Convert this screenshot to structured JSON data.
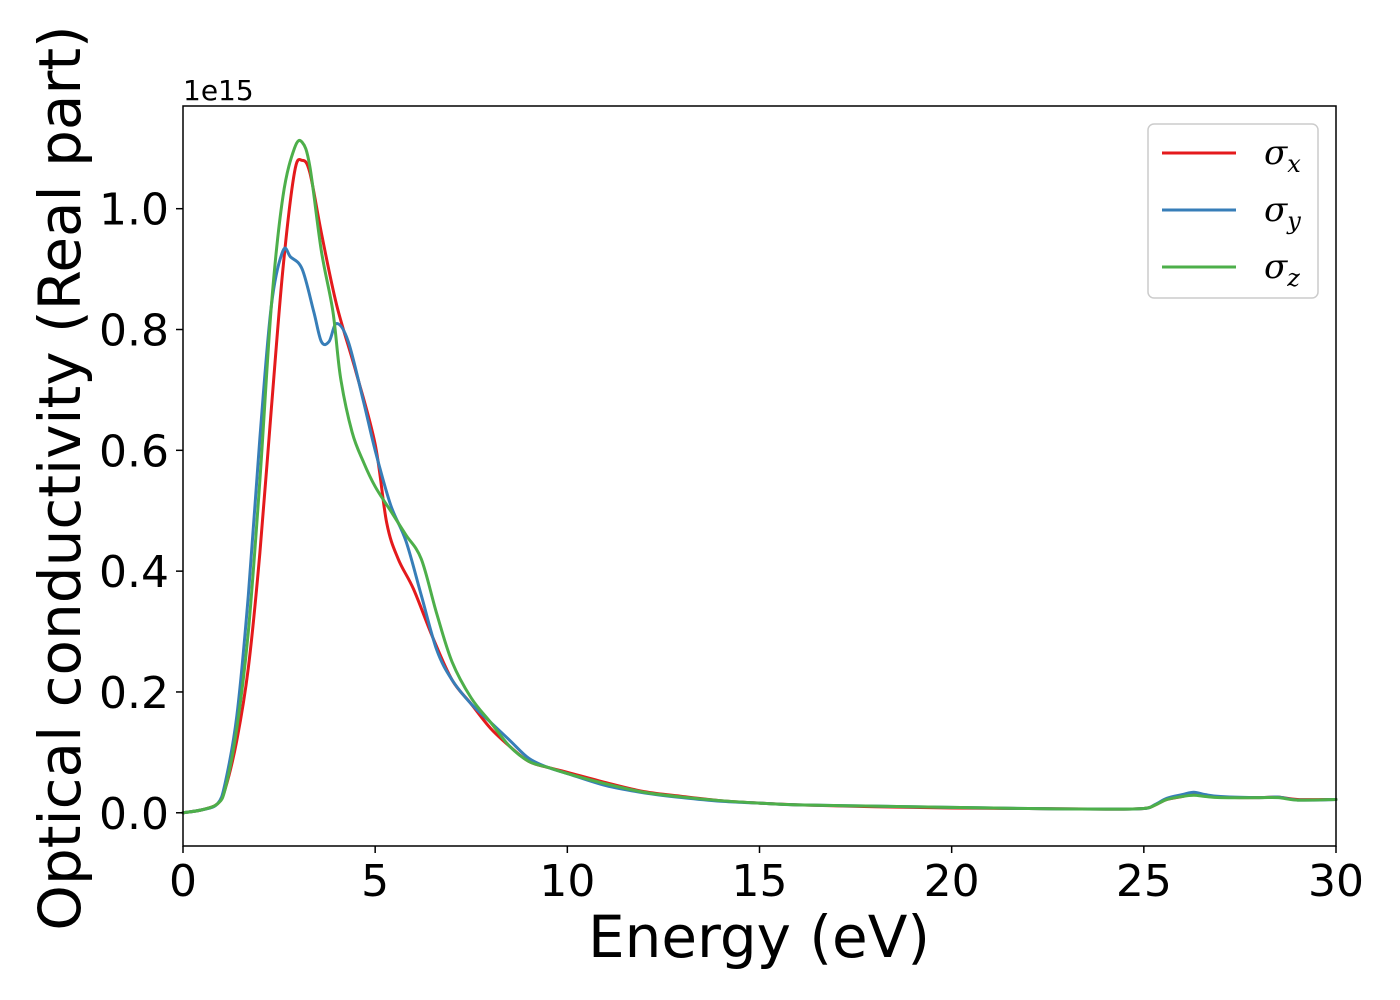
{
  "chart_data": {
    "type": "line",
    "title": "",
    "xlabel": "Energy (eV)",
    "ylabel": "Optical conductivity (Real part)",
    "y_offset_label": "1e15",
    "xlim": [
      0,
      30
    ],
    "ylim": [
      -0.055,
      1.17
    ],
    "xticks": [
      0,
      5,
      10,
      15,
      20,
      25,
      30
    ],
    "xtick_labels": [
      "0",
      "5",
      "10",
      "15",
      "20",
      "25",
      "30"
    ],
    "yticks": [
      0.0,
      0.2,
      0.4,
      0.6,
      0.8,
      1.0
    ],
    "ytick_labels": [
      "0.0",
      "0.2",
      "0.4",
      "0.6",
      "0.8",
      "1.0"
    ],
    "grid": false,
    "legend_position": "top-right",
    "series": [
      {
        "name": "σx",
        "symbol": "σ",
        "subscript": "x",
        "color": "#e41a1c",
        "x": [
          0,
          0.5,
          0.9,
          1.1,
          1.4,
          1.7,
          2.0,
          2.3,
          2.6,
          2.9,
          3.1,
          3.3,
          3.6,
          4.0,
          4.5,
          5.0,
          5.3,
          5.6,
          6.0,
          6.5,
          7.0,
          7.5,
          8.0,
          8.5,
          9.0,
          9.5,
          10.0,
          11.0,
          12.0,
          13.0,
          14.0,
          15.0,
          16.0,
          18.0,
          20.0,
          22.0,
          24.0,
          25.0,
          25.3,
          25.6,
          26.0,
          26.3,
          26.6,
          27.0,
          28.0,
          28.5,
          29.0,
          30.0
        ],
        "values": [
          0.0,
          0.005,
          0.015,
          0.04,
          0.12,
          0.24,
          0.43,
          0.67,
          0.9,
          1.06,
          1.08,
          1.06,
          0.96,
          0.84,
          0.73,
          0.61,
          0.48,
          0.42,
          0.37,
          0.29,
          0.22,
          0.18,
          0.14,
          0.11,
          0.085,
          0.075,
          0.067,
          0.05,
          0.035,
          0.027,
          0.02,
          0.016,
          0.013,
          0.01,
          0.008,
          0.007,
          0.006,
          0.007,
          0.013,
          0.022,
          0.027,
          0.031,
          0.028,
          0.026,
          0.025,
          0.026,
          0.022,
          0.022
        ]
      },
      {
        "name": "σy",
        "symbol": "σ",
        "subscript": "y",
        "color": "#377eb8",
        "x": [
          0,
          0.5,
          0.9,
          1.1,
          1.4,
          1.7,
          2.0,
          2.3,
          2.6,
          2.8,
          3.1,
          3.4,
          3.6,
          3.8,
          4.0,
          4.3,
          4.7,
          5.0,
          5.4,
          5.8,
          6.2,
          6.6,
          7.0,
          7.5,
          8.0,
          8.5,
          9.0,
          9.5,
          10.0,
          11.0,
          12.0,
          13.0,
          14.0,
          15.0,
          16.0,
          18.0,
          20.0,
          22.0,
          24.0,
          25.0,
          25.3,
          25.6,
          26.0,
          26.3,
          26.6,
          27.0,
          28.0,
          28.5,
          29.0,
          30.0
        ],
        "values": [
          0.0,
          0.005,
          0.015,
          0.05,
          0.16,
          0.36,
          0.62,
          0.84,
          0.93,
          0.92,
          0.9,
          0.83,
          0.78,
          0.78,
          0.81,
          0.78,
          0.68,
          0.6,
          0.51,
          0.45,
          0.36,
          0.27,
          0.22,
          0.18,
          0.15,
          0.12,
          0.09,
          0.075,
          0.065,
          0.045,
          0.033,
          0.025,
          0.019,
          0.016,
          0.013,
          0.011,
          0.009,
          0.007,
          0.006,
          0.007,
          0.014,
          0.024,
          0.03,
          0.034,
          0.03,
          0.027,
          0.025,
          0.026,
          0.021,
          0.022
        ]
      },
      {
        "name": "σz",
        "symbol": "σ",
        "subscript": "z",
        "color": "#4daf4a",
        "x": [
          0,
          0.5,
          0.9,
          1.1,
          1.4,
          1.7,
          2.0,
          2.3,
          2.6,
          2.9,
          3.1,
          3.3,
          3.6,
          3.9,
          4.1,
          4.4,
          4.7,
          5.0,
          5.4,
          5.8,
          6.2,
          6.6,
          7.0,
          7.5,
          8.0,
          8.5,
          9.0,
          9.5,
          10.0,
          11.0,
          12.0,
          13.0,
          14.0,
          15.0,
          16.0,
          18.0,
          20.0,
          22.0,
          24.0,
          25.0,
          25.3,
          25.6,
          26.0,
          26.3,
          26.6,
          27.0,
          28.0,
          28.5,
          29.0,
          30.0
        ],
        "values": [
          0.0,
          0.005,
          0.015,
          0.04,
          0.14,
          0.3,
          0.55,
          0.84,
          1.02,
          1.1,
          1.11,
          1.07,
          0.93,
          0.83,
          0.72,
          0.63,
          0.58,
          0.54,
          0.5,
          0.46,
          0.42,
          0.33,
          0.25,
          0.19,
          0.15,
          0.11,
          0.085,
          0.075,
          0.065,
          0.048,
          0.034,
          0.026,
          0.02,
          0.016,
          0.013,
          0.011,
          0.009,
          0.007,
          0.006,
          0.007,
          0.013,
          0.022,
          0.027,
          0.029,
          0.027,
          0.025,
          0.025,
          0.025,
          0.021,
          0.022
        ]
      }
    ]
  }
}
